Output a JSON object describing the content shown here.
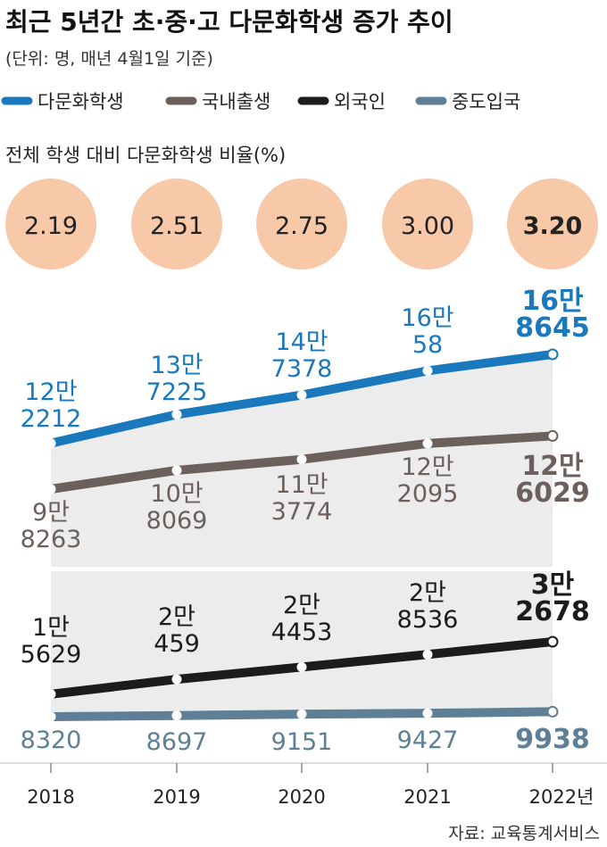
{
  "title": "최근 5년간 초·중·고 다문화학생 증가 추이",
  "subtitle": "(단위: 명, 매년 4월1일 기준)",
  "ratio_label": "전체 학생 대비 다문화학생 비율(%)",
  "ratios": [
    "2.19",
    "2.51",
    "2.75",
    "3.00",
    "3.20"
  ],
  "source": "자료: 교육통계서비스",
  "colors": {
    "multicultural": "#1a78bd",
    "domestic": "#6b605b",
    "foreign": "#1c1c1c",
    "midentry": "#5e7f95",
    "circle": "#f7c9a8",
    "band": "#ececec"
  },
  "chart_data": {
    "type": "line",
    "x": [
      "2018",
      "2019",
      "2020",
      "2021",
      "2022년"
    ],
    "series": [
      {
        "name": "다문화학생",
        "values": [
          122212,
          137225,
          147378,
          160058,
          168645
        ],
        "labels": [
          [
            "12만",
            "2212"
          ],
          [
            "13만",
            "7225"
          ],
          [
            "14만",
            "7378"
          ],
          [
            "16만",
            "58"
          ],
          [
            "16만",
            "8645"
          ]
        ]
      },
      {
        "name": "국내출생",
        "values": [
          98263,
          108069,
          113774,
          122095,
          126029
        ],
        "labels": [
          [
            "9만",
            "8263"
          ],
          [
            "10만",
            "8069"
          ],
          [
            "11만",
            "3774"
          ],
          [
            "12만",
            "2095"
          ],
          [
            "12만",
            "6029"
          ]
        ]
      },
      {
        "name": "외국인",
        "values": [
          15629,
          20459,
          24453,
          28536,
          32678
        ],
        "labels": [
          [
            "1만",
            "5629"
          ],
          [
            "2만",
            "459"
          ],
          [
            "2만",
            "4453"
          ],
          [
            "2만",
            "8536"
          ],
          [
            "3만",
            "2678"
          ]
        ]
      },
      {
        "name": "중도입국",
        "values": [
          8320,
          8697,
          9151,
          9427,
          9938
        ],
        "labels": [
          [
            "8320"
          ],
          [
            "8697"
          ],
          [
            "9151"
          ],
          [
            "9427"
          ],
          [
            "9938"
          ]
        ]
      }
    ]
  }
}
